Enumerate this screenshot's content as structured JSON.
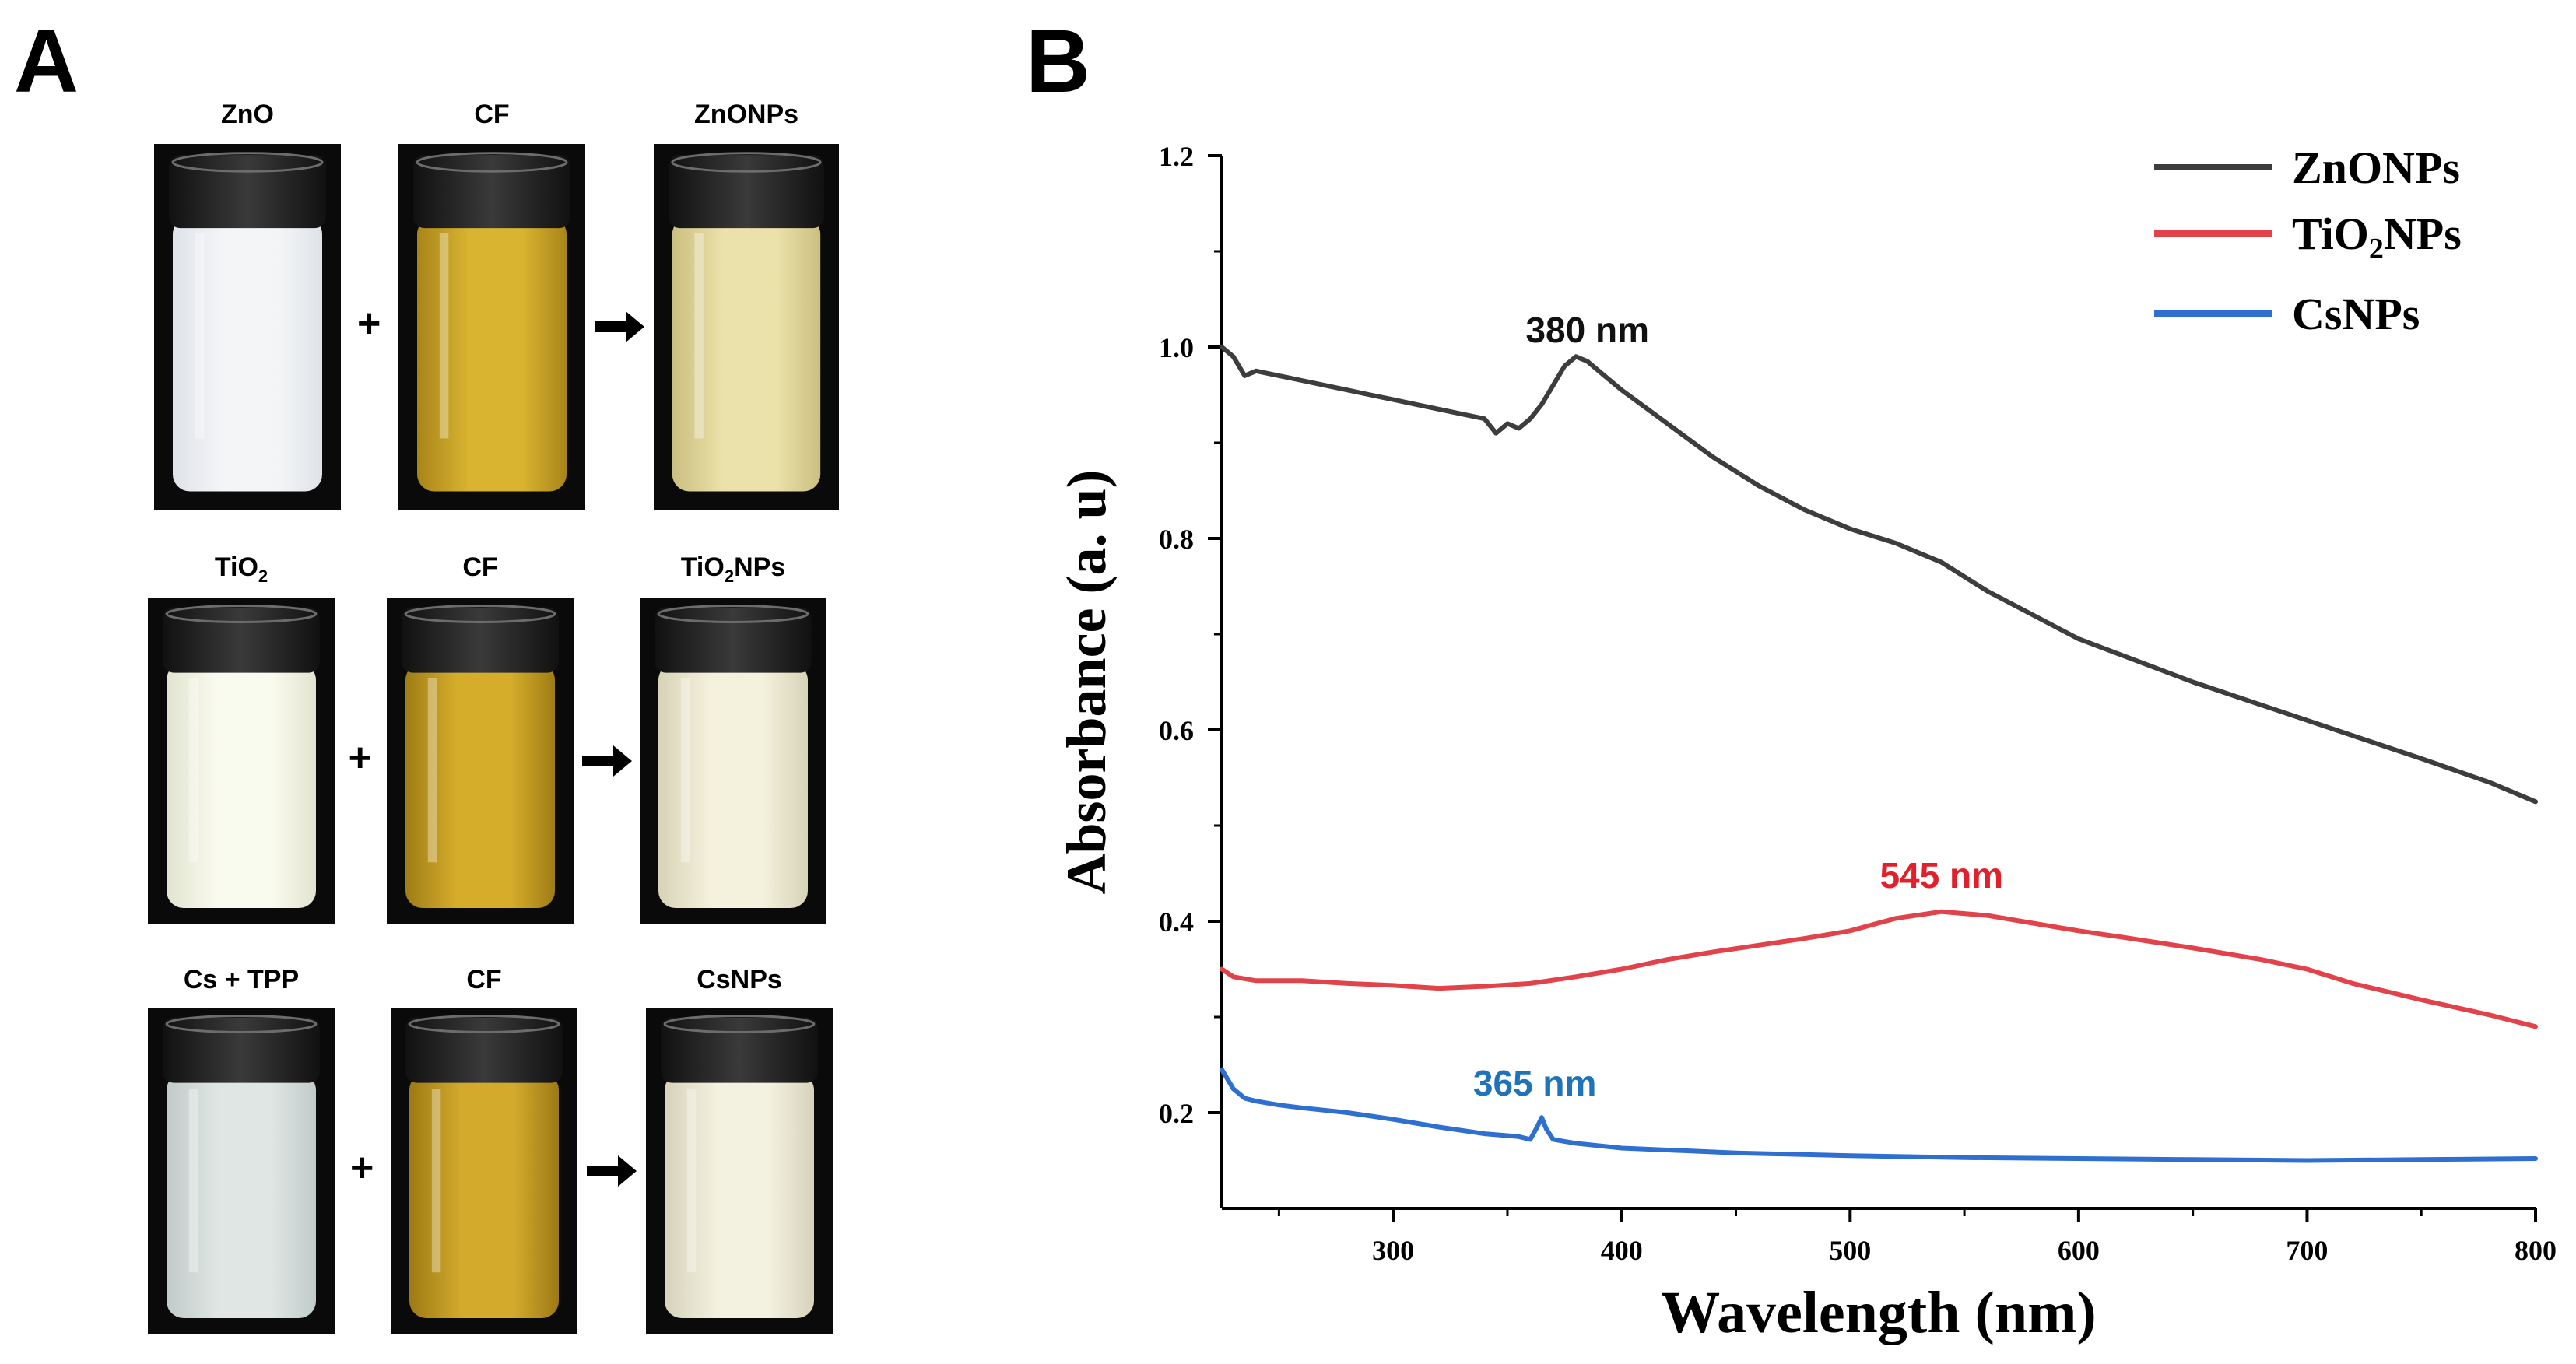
{
  "panel_a": {
    "label": "A",
    "rows": [
      {
        "vials": [
          {
            "label": "ZnO",
            "sub": "",
            "suffix": "",
            "liquid": "#f4f5f7",
            "shade": "#dfe3e8"
          },
          {
            "label": "CF",
            "sub": "",
            "suffix": "",
            "liquid": "#d9b431",
            "shade": "#a88519"
          },
          {
            "label": "ZnONPs",
            "sub": "",
            "suffix": "",
            "liquid": "#ebe2ab",
            "shade": "#cbbf80"
          }
        ]
      },
      {
        "vials": [
          {
            "label": "TiO",
            "sub": "2",
            "suffix": "",
            "liquid": "#fafbef",
            "shade": "#e2e4d0"
          },
          {
            "label": "CF",
            "sub": "",
            "suffix": "",
            "liquid": "#d6ad2b",
            "shade": "#9f7d16"
          },
          {
            "label": "TiO",
            "sub": "2",
            "suffix": "NPs",
            "liquid": "#f4f1dc",
            "shade": "#d8d3b7"
          }
        ]
      },
      {
        "vials": [
          {
            "label": "Cs + TPP",
            "sub": "",
            "suffix": "",
            "liquid": "#dfe6e4",
            "shade": "#c1cbc9"
          },
          {
            "label": "CF",
            "sub": "",
            "suffix": "",
            "liquid": "#d3aa2c",
            "shade": "#9c7a15"
          },
          {
            "label": "CsNPs",
            "sub": "",
            "suffix": "",
            "liquid": "#f3f1df",
            "shade": "#d6d2bb"
          }
        ]
      }
    ],
    "plus_symbol": "+"
  },
  "chart_data": {
    "panel_label": "B",
    "type": "line",
    "xlabel": "Wavelength (nm)",
    "ylabel": "Absorbance (a. u)",
    "xlim": [
      225,
      800
    ],
    "ylim": [
      0.1,
      1.2
    ],
    "xticks": [
      300,
      400,
      500,
      600,
      700,
      800
    ],
    "yticks": [
      0.2,
      0.4,
      0.6,
      0.8,
      1.0,
      1.2
    ],
    "ytick_labels": [
      "0.2",
      "0.4",
      "0.6",
      "0.8",
      "1.0",
      "1.2"
    ],
    "grid": false,
    "legend_position": "top-right",
    "series": [
      {
        "name": "ZnONPs",
        "name_main": "ZnONPs",
        "name_sub": "",
        "name_tail": "",
        "color": "#3d3d3d",
        "x": [
          225,
          230,
          235,
          240,
          250,
          260,
          270,
          280,
          290,
          300,
          310,
          320,
          330,
          340,
          345,
          350,
          355,
          360,
          365,
          370,
          375,
          380,
          385,
          390,
          400,
          420,
          440,
          460,
          480,
          500,
          520,
          540,
          560,
          580,
          600,
          650,
          700,
          750,
          780,
          800
        ],
        "y": [
          1.0,
          0.99,
          0.97,
          0.975,
          0.97,
          0.965,
          0.96,
          0.955,
          0.95,
          0.945,
          0.94,
          0.935,
          0.93,
          0.925,
          0.91,
          0.92,
          0.915,
          0.925,
          0.94,
          0.96,
          0.98,
          0.99,
          0.985,
          0.975,
          0.955,
          0.92,
          0.885,
          0.855,
          0.83,
          0.81,
          0.795,
          0.775,
          0.745,
          0.72,
          0.695,
          0.65,
          0.61,
          0.57,
          0.545,
          0.525
        ]
      },
      {
        "name": "TiO2NPs",
        "name_main": "TiO",
        "name_sub": "2",
        "name_tail": "NPs",
        "color": "#e2434b",
        "x": [
          225,
          230,
          240,
          260,
          280,
          300,
          320,
          340,
          360,
          380,
          400,
          420,
          440,
          460,
          480,
          500,
          520,
          540,
          560,
          580,
          600,
          620,
          650,
          680,
          700,
          720,
          750,
          780,
          800
        ],
        "y": [
          0.35,
          0.342,
          0.338,
          0.338,
          0.335,
          0.333,
          0.33,
          0.332,
          0.335,
          0.342,
          0.35,
          0.36,
          0.368,
          0.375,
          0.382,
          0.39,
          0.403,
          0.41,
          0.406,
          0.398,
          0.39,
          0.383,
          0.372,
          0.36,
          0.35,
          0.335,
          0.318,
          0.302,
          0.29
        ]
      },
      {
        "name": "CsNPs",
        "name_main": "CsNPs",
        "name_sub": "",
        "name_tail": "",
        "color": "#2e6fd0",
        "x": [
          225,
          230,
          235,
          240,
          250,
          260,
          280,
          300,
          320,
          340,
          355,
          360,
          363,
          365,
          367,
          370,
          380,
          400,
          450,
          500,
          550,
          600,
          650,
          700,
          750,
          800
        ],
        "y": [
          0.245,
          0.225,
          0.215,
          0.212,
          0.208,
          0.205,
          0.2,
          0.193,
          0.185,
          0.178,
          0.175,
          0.172,
          0.185,
          0.195,
          0.183,
          0.172,
          0.168,
          0.163,
          0.158,
          0.155,
          0.153,
          0.152,
          0.151,
          0.15,
          0.151,
          0.152
        ]
      }
    ],
    "annotations": [
      {
        "text": "380 nm",
        "x": 385,
        "y": 1.005,
        "color": "#111111"
      },
      {
        "text": "545 nm",
        "x": 540,
        "y": 0.435,
        "color": "#e0212c"
      },
      {
        "text": "365 nm",
        "x": 362,
        "y": 0.218,
        "color": "#1e73b9"
      }
    ]
  }
}
